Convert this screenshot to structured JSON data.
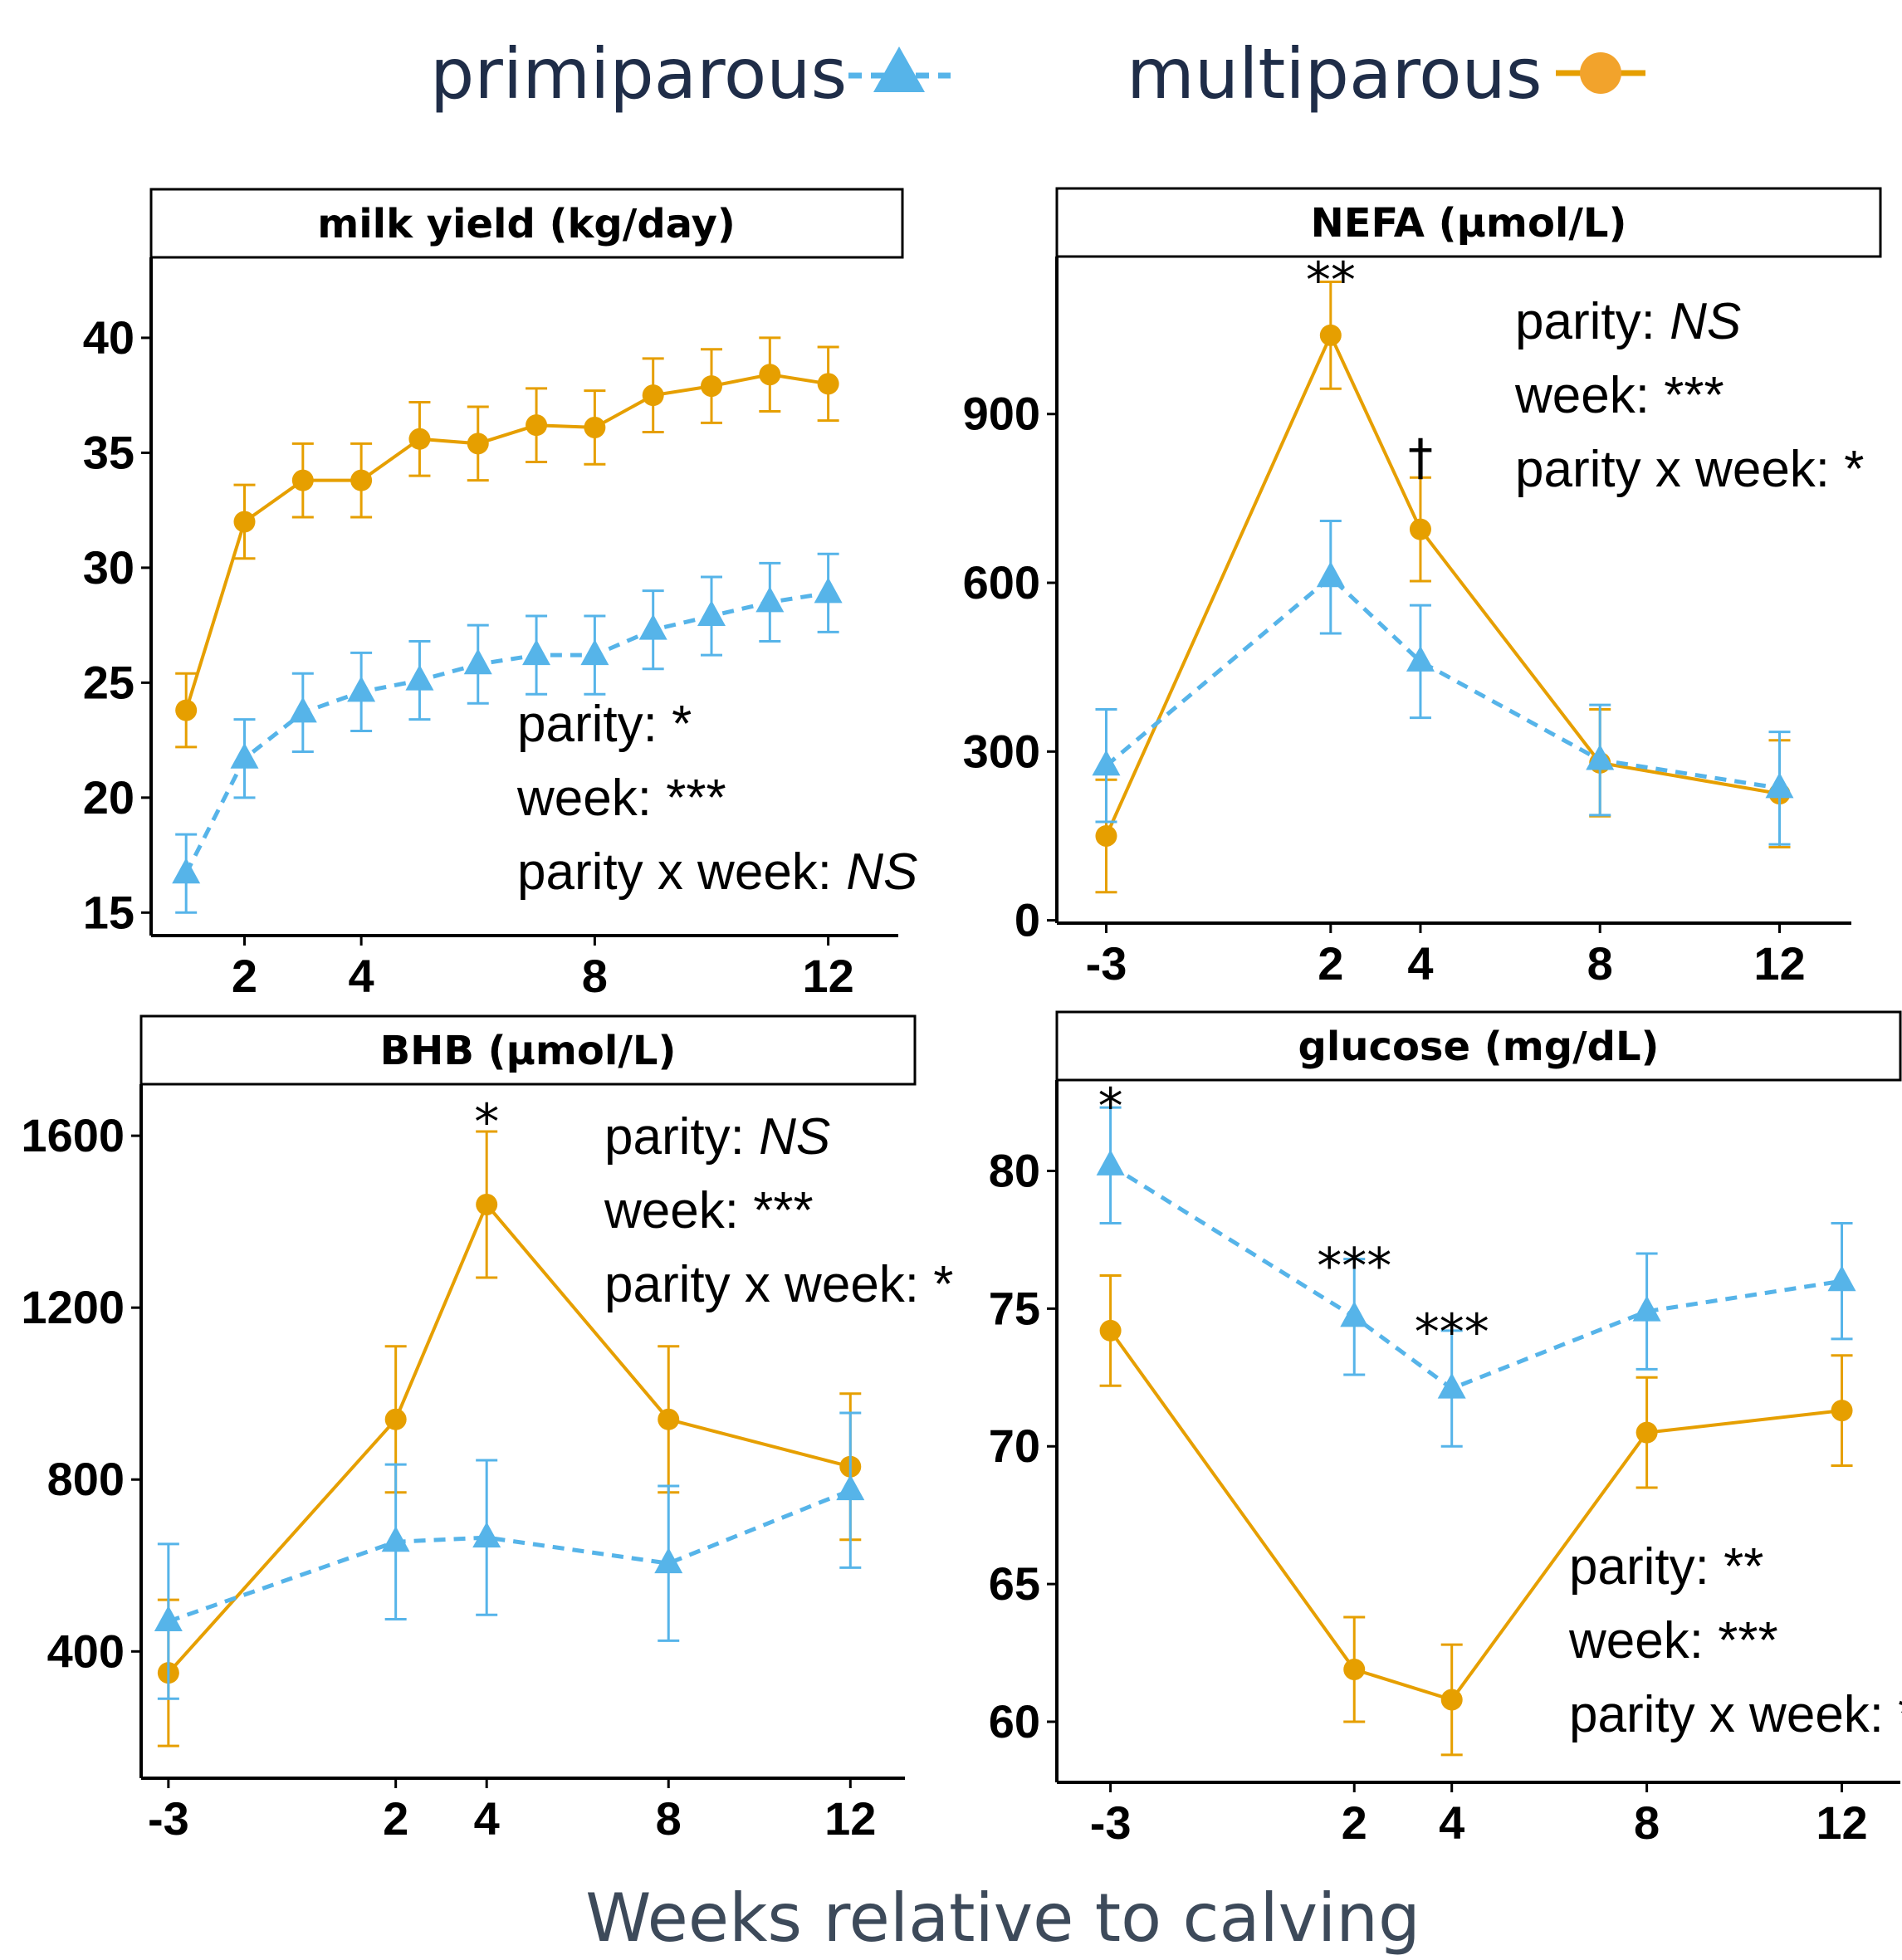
{
  "legend": {
    "primiparous": "primiparous",
    "multiparous": "multiparous"
  },
  "colors": {
    "primiparous": "#56b4e9",
    "multiparous": "#e69f00",
    "text": "#1f2d48",
    "xlabel": "#3d4a5a"
  },
  "icons": {
    "primiparous": "triangle-dashed-line",
    "multiparous": "circle-solid-line"
  },
  "xlabel": "Weeks relative to calving",
  "chart_data": [
    {
      "type": "line",
      "title": "milk yield (kg/day)",
      "xlim": [
        0.4,
        13.2
      ],
      "ylim": [
        14,
        43.5
      ],
      "xticks": [
        2,
        4,
        8,
        12
      ],
      "xtick_labels": [
        "2",
        "4",
        "8",
        "12"
      ],
      "yticks": [
        15,
        20,
        25,
        30,
        35,
        40
      ],
      "ytick_labels": [
        "15",
        "20",
        "25",
        "30",
        "35",
        "40"
      ],
      "series": [
        {
          "name": "multiparous",
          "x": [
            1,
            2,
            3,
            4,
            5,
            6,
            7,
            8,
            9,
            10,
            11,
            12
          ],
          "y": [
            23.8,
            32.0,
            33.8,
            33.8,
            35.6,
            35.4,
            36.2,
            36.1,
            37.5,
            37.9,
            38.4,
            38.0
          ],
          "err": [
            1.6,
            1.6,
            1.6,
            1.6,
            1.6,
            1.6,
            1.6,
            1.6,
            1.6,
            1.6,
            1.6,
            1.6
          ]
        },
        {
          "name": "primiparous",
          "x": [
            1,
            2,
            3,
            4,
            5,
            6,
            7,
            8,
            9,
            10,
            11,
            12
          ],
          "y": [
            16.7,
            21.7,
            23.7,
            24.6,
            25.1,
            25.8,
            26.2,
            26.2,
            27.3,
            27.9,
            28.5,
            28.9
          ],
          "err": [
            1.7,
            1.7,
            1.7,
            1.7,
            1.7,
            1.7,
            1.7,
            1.7,
            1.7,
            1.7,
            1.7,
            1.7
          ]
        }
      ],
      "stats": [
        {
          "label": "parity: ",
          "value": "*",
          "italic": false
        },
        {
          "label": "week: ",
          "value": "***",
          "italic": false
        },
        {
          "label": "parity x week: ",
          "value": "NS",
          "italic": true
        }
      ],
      "sig_marks": []
    },
    {
      "type": "line",
      "title": "NEFA (µmol/L)",
      "xlim": [
        -4.1,
        13.6
      ],
      "ylim": [
        -5,
        1180
      ],
      "xticks": [
        -3,
        2,
        4,
        8,
        12
      ],
      "xtick_labels": [
        "-3",
        "2",
        "4",
        "8",
        "12"
      ],
      "yticks": [
        0,
        300,
        600,
        900
      ],
      "ytick_labels": [
        "0",
        "300",
        "600",
        "900"
      ],
      "series": [
        {
          "name": "multiparous",
          "x": [
            -3,
            2,
            4,
            8,
            12
          ],
          "y": [
            150,
            1040,
            695,
            280,
            225
          ],
          "err": [
            100,
            95,
            92,
            95,
            95
          ]
        },
        {
          "name": "primiparous",
          "x": [
            -3,
            2,
            4,
            8,
            12
          ],
          "y": [
            275,
            610,
            460,
            285,
            235
          ],
          "err": [
            100,
            100,
            100,
            98,
            100
          ]
        }
      ],
      "stats": [
        {
          "label": "parity: ",
          "value": "NS",
          "italic": true
        },
        {
          "label": "week: ",
          "value": "***",
          "italic": false
        },
        {
          "label": "parity x week: ",
          "value": "*",
          "italic": false
        }
      ],
      "sig_marks": [
        {
          "x": 2,
          "y": 1140,
          "text": "**"
        },
        {
          "x": 4,
          "y": 825,
          "text": "†"
        }
      ]
    },
    {
      "type": "line",
      "title": "BHB (µmol/L)",
      "xlim": [
        -3.6,
        13.2
      ],
      "ylim": [
        105,
        1720
      ],
      "xticks": [
        -3,
        2,
        4,
        8,
        12
      ],
      "xtick_labels": [
        "-3",
        "2",
        "4",
        "8",
        "12"
      ],
      "yticks": [
        400,
        800,
        1200,
        1600
      ],
      "ytick_labels": [
        "400",
        "800",
        "1200",
        "1600"
      ],
      "series": [
        {
          "name": "multiparous",
          "x": [
            -3,
            2,
            4,
            8,
            12
          ],
          "y": [
            350,
            940,
            1440,
            940,
            830
          ],
          "err": [
            170,
            170,
            170,
            170,
            170
          ]
        },
        {
          "name": "primiparous",
          "x": [
            -3,
            2,
            4,
            8,
            12
          ],
          "y": [
            470,
            655,
            665,
            605,
            775
          ],
          "err": [
            180,
            180,
            180,
            180,
            180
          ]
        }
      ],
      "stats": [
        {
          "label": "parity: ",
          "value": "NS",
          "italic": true
        },
        {
          "label": "week: ",
          "value": "***",
          "italic": false
        },
        {
          "label": "parity x week: ",
          "value": "*",
          "italic": false
        }
      ],
      "sig_marks": [
        {
          "x": 4,
          "y": 1635,
          "text": "*"
        }
      ]
    },
    {
      "type": "line",
      "title": "glucose (mg/dL)",
      "xlim": [
        -4.1,
        13.2
      ],
      "ylim": [
        57.8,
        83.3
      ],
      "xticks": [
        -3,
        2,
        4,
        8,
        12
      ],
      "xtick_labels": [
        "-3",
        "2",
        "4",
        "8",
        "12"
      ],
      "yticks": [
        60,
        65,
        70,
        75,
        80
      ],
      "ytick_labels": [
        "60",
        "65",
        "70",
        "75",
        "80"
      ],
      "series": [
        {
          "name": "multiparous",
          "x": [
            -3,
            2,
            4,
            8,
            12
          ],
          "y": [
            74.2,
            61.9,
            60.8,
            70.5,
            71.3
          ],
          "err": [
            2.0,
            1.9,
            2.0,
            2.0,
            2.0
          ]
        },
        {
          "name": "primiparous",
          "x": [
            -3,
            2,
            4,
            8,
            12
          ],
          "y": [
            80.2,
            74.7,
            72.1,
            74.9,
            76.0
          ],
          "err": [
            2.1,
            2.1,
            2.1,
            2.1,
            2.1
          ]
        }
      ],
      "stats": [
        {
          "label": "parity: ",
          "value": "**",
          "italic": false
        },
        {
          "label": "week: ",
          "value": "***",
          "italic": false
        },
        {
          "label": "parity x week: ",
          "value": "*",
          "italic": false
        }
      ],
      "sig_marks": [
        {
          "x": -3,
          "y": 82.4,
          "text": "*"
        },
        {
          "x": 2,
          "y": 76.6,
          "text": "***"
        },
        {
          "x": 4,
          "y": 74.2,
          "text": "***"
        }
      ]
    }
  ]
}
